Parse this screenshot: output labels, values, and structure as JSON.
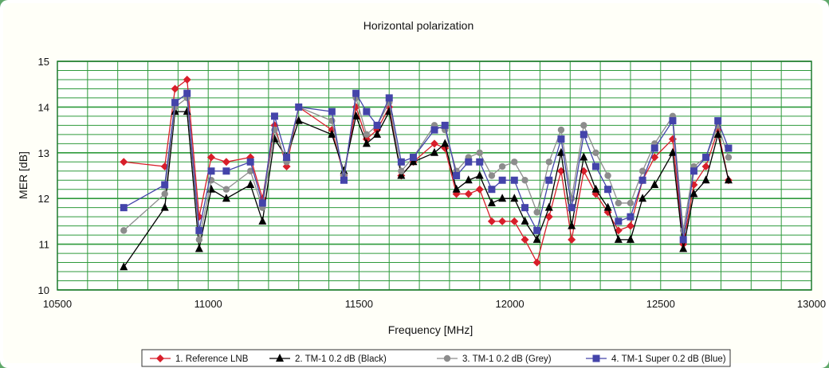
{
  "chart_data": {
    "type": "line",
    "title": "Horizontal polarization",
    "xlabel": "Frequency [MHz]",
    "ylabel": "MER [dB]",
    "xlim": [
      10500,
      13000
    ],
    "ylim": [
      10,
      15
    ],
    "x_ticks": [
      10500,
      11000,
      11500,
      12000,
      12500,
      13000
    ],
    "y_ticks": [
      10,
      11,
      12,
      13,
      14,
      15
    ],
    "grid": true,
    "legend_position": "bottom",
    "series": [
      {
        "name": "1. Reference LNB",
        "color": "#d81e2a",
        "marker": "diamond",
        "points": [
          [
            10720,
            12.8
          ],
          [
            10856,
            12.7
          ],
          [
            10890,
            14.4
          ],
          [
            10930,
            14.6
          ],
          [
            10970,
            11.6
          ],
          [
            11010,
            12.9
          ],
          [
            11060,
            12.8
          ],
          [
            11140,
            12.9
          ],
          [
            11180,
            12.0
          ],
          [
            11220,
            13.6
          ],
          [
            11260,
            12.7
          ],
          [
            11300,
            14.0
          ],
          [
            11410,
            13.5
          ],
          [
            11450,
            12.5
          ],
          [
            11490,
            14.0
          ],
          [
            11525,
            13.3
          ],
          [
            11560,
            13.5
          ],
          [
            11600,
            14.0
          ],
          [
            11640,
            12.5
          ],
          [
            11680,
            12.8
          ],
          [
            11750,
            13.2
          ],
          [
            11785,
            13.1
          ],
          [
            11823,
            12.1
          ],
          [
            11863,
            12.1
          ],
          [
            11900,
            12.2
          ],
          [
            11940,
            11.5
          ],
          [
            11975,
            11.5
          ],
          [
            12015,
            11.5
          ],
          [
            12050,
            11.1
          ],
          [
            12090,
            10.6
          ],
          [
            12130,
            11.6
          ],
          [
            12170,
            12.6
          ],
          [
            12205,
            11.1
          ],
          [
            12245,
            12.6
          ],
          [
            12285,
            12.1
          ],
          [
            12325,
            11.7
          ],
          [
            12360,
            11.3
          ],
          [
            12400,
            11.4
          ],
          [
            12440,
            12.4
          ],
          [
            12480,
            12.9
          ],
          [
            12540,
            13.3
          ],
          [
            12575,
            11.0
          ],
          [
            12610,
            12.3
          ],
          [
            12650,
            12.7
          ],
          [
            12690,
            13.5
          ],
          [
            12725,
            12.4
          ]
        ]
      },
      {
        "name": "2. TM-1 0.2 dB (Black)",
        "color": "#000000",
        "marker": "triangle",
        "points": [
          [
            10720,
            10.5
          ],
          [
            10856,
            11.8
          ],
          [
            10890,
            13.9
          ],
          [
            10930,
            13.9
          ],
          [
            10970,
            10.9
          ],
          [
            11010,
            12.2
          ],
          [
            11060,
            12.0
          ],
          [
            11140,
            12.3
          ],
          [
            11180,
            11.5
          ],
          [
            11220,
            13.3
          ],
          [
            11260,
            12.9
          ],
          [
            11300,
            13.7
          ],
          [
            11410,
            13.4
          ],
          [
            11450,
            12.6
          ],
          [
            11490,
            13.8
          ],
          [
            11525,
            13.2
          ],
          [
            11560,
            13.4
          ],
          [
            11600,
            13.9
          ],
          [
            11640,
            12.5
          ],
          [
            11680,
            12.8
          ],
          [
            11750,
            13.0
          ],
          [
            11785,
            13.2
          ],
          [
            11823,
            12.2
          ],
          [
            11863,
            12.4
          ],
          [
            11900,
            12.5
          ],
          [
            11940,
            11.9
          ],
          [
            11975,
            12.0
          ],
          [
            12015,
            12.0
          ],
          [
            12050,
            11.5
          ],
          [
            12090,
            11.1
          ],
          [
            12130,
            11.8
          ],
          [
            12170,
            13.0
          ],
          [
            12205,
            11.4
          ],
          [
            12245,
            12.9
          ],
          [
            12285,
            12.2
          ],
          [
            12325,
            11.8
          ],
          [
            12360,
            11.1
          ],
          [
            12400,
            11.1
          ],
          [
            12440,
            12.0
          ],
          [
            12480,
            12.3
          ],
          [
            12540,
            13.0
          ],
          [
            12575,
            10.9
          ],
          [
            12610,
            12.1
          ],
          [
            12650,
            12.4
          ],
          [
            12690,
            13.4
          ],
          [
            12725,
            12.4
          ]
        ]
      },
      {
        "name": "3. TM-1 0.2 dB (Grey)",
        "color": "#8c8c8c",
        "marker": "circle",
        "points": [
          [
            10720,
            11.3
          ],
          [
            10856,
            12.1
          ],
          [
            10890,
            14.0
          ],
          [
            10930,
            14.2
          ],
          [
            10970,
            11.1
          ],
          [
            11010,
            12.4
          ],
          [
            11060,
            12.2
          ],
          [
            11140,
            12.6
          ],
          [
            11180,
            11.8
          ],
          [
            11220,
            13.5
          ],
          [
            11260,
            12.8
          ],
          [
            11300,
            14.0
          ],
          [
            11410,
            13.7
          ],
          [
            11450,
            12.5
          ],
          [
            11490,
            14.2
          ],
          [
            11525,
            13.4
          ],
          [
            11560,
            13.6
          ],
          [
            11600,
            14.1
          ],
          [
            11640,
            12.6
          ],
          [
            11680,
            12.9
          ],
          [
            11750,
            13.6
          ],
          [
            11785,
            13.5
          ],
          [
            11823,
            12.6
          ],
          [
            11863,
            12.9
          ],
          [
            11900,
            13.0
          ],
          [
            11940,
            12.5
          ],
          [
            11975,
            12.7
          ],
          [
            12015,
            12.8
          ],
          [
            12050,
            12.4
          ],
          [
            12090,
            11.7
          ],
          [
            12130,
            12.8
          ],
          [
            12170,
            13.5
          ],
          [
            12205,
            12.0
          ],
          [
            12245,
            13.6
          ],
          [
            12285,
            13.0
          ],
          [
            12325,
            12.5
          ],
          [
            12360,
            11.9
          ],
          [
            12400,
            11.9
          ],
          [
            12440,
            12.6
          ],
          [
            12480,
            13.2
          ],
          [
            12540,
            13.8
          ],
          [
            12575,
            11.3
          ],
          [
            12610,
            12.7
          ],
          [
            12650,
            12.9
          ],
          [
            12690,
            13.6
          ],
          [
            12725,
            12.9
          ]
        ]
      },
      {
        "name": "4. TM-1 Super 0.2 dB (Blue)",
        "color": "#4444aa",
        "marker": "square",
        "points": [
          [
            10720,
            11.8
          ],
          [
            10856,
            12.3
          ],
          [
            10890,
            14.1
          ],
          [
            10930,
            14.3
          ],
          [
            10970,
            11.3
          ],
          [
            11010,
            12.6
          ],
          [
            11060,
            12.6
          ],
          [
            11140,
            12.8
          ],
          [
            11180,
            11.9
          ],
          [
            11220,
            13.8
          ],
          [
            11260,
            12.9
          ],
          [
            11300,
            14.0
          ],
          [
            11410,
            13.9
          ],
          [
            11450,
            12.4
          ],
          [
            11490,
            14.3
          ],
          [
            11525,
            13.9
          ],
          [
            11560,
            13.6
          ],
          [
            11600,
            14.2
          ],
          [
            11640,
            12.8
          ],
          [
            11680,
            12.9
          ],
          [
            11750,
            13.5
          ],
          [
            11785,
            13.6
          ],
          [
            11823,
            12.5
          ],
          [
            11863,
            12.8
          ],
          [
            11900,
            12.8
          ],
          [
            11940,
            12.2
          ],
          [
            11975,
            12.4
          ],
          [
            12015,
            12.4
          ],
          [
            12050,
            11.8
          ],
          [
            12090,
            11.3
          ],
          [
            12130,
            12.4
          ],
          [
            12170,
            13.3
          ],
          [
            12205,
            11.8
          ],
          [
            12245,
            13.4
          ],
          [
            12285,
            12.7
          ],
          [
            12325,
            12.2
          ],
          [
            12360,
            11.5
          ],
          [
            12400,
            11.6
          ],
          [
            12440,
            12.4
          ],
          [
            12480,
            13.1
          ],
          [
            12540,
            13.7
          ],
          [
            12575,
            11.1
          ],
          [
            12610,
            12.6
          ],
          [
            12650,
            12.9
          ],
          [
            12690,
            13.7
          ],
          [
            12725,
            13.1
          ]
        ]
      }
    ]
  }
}
